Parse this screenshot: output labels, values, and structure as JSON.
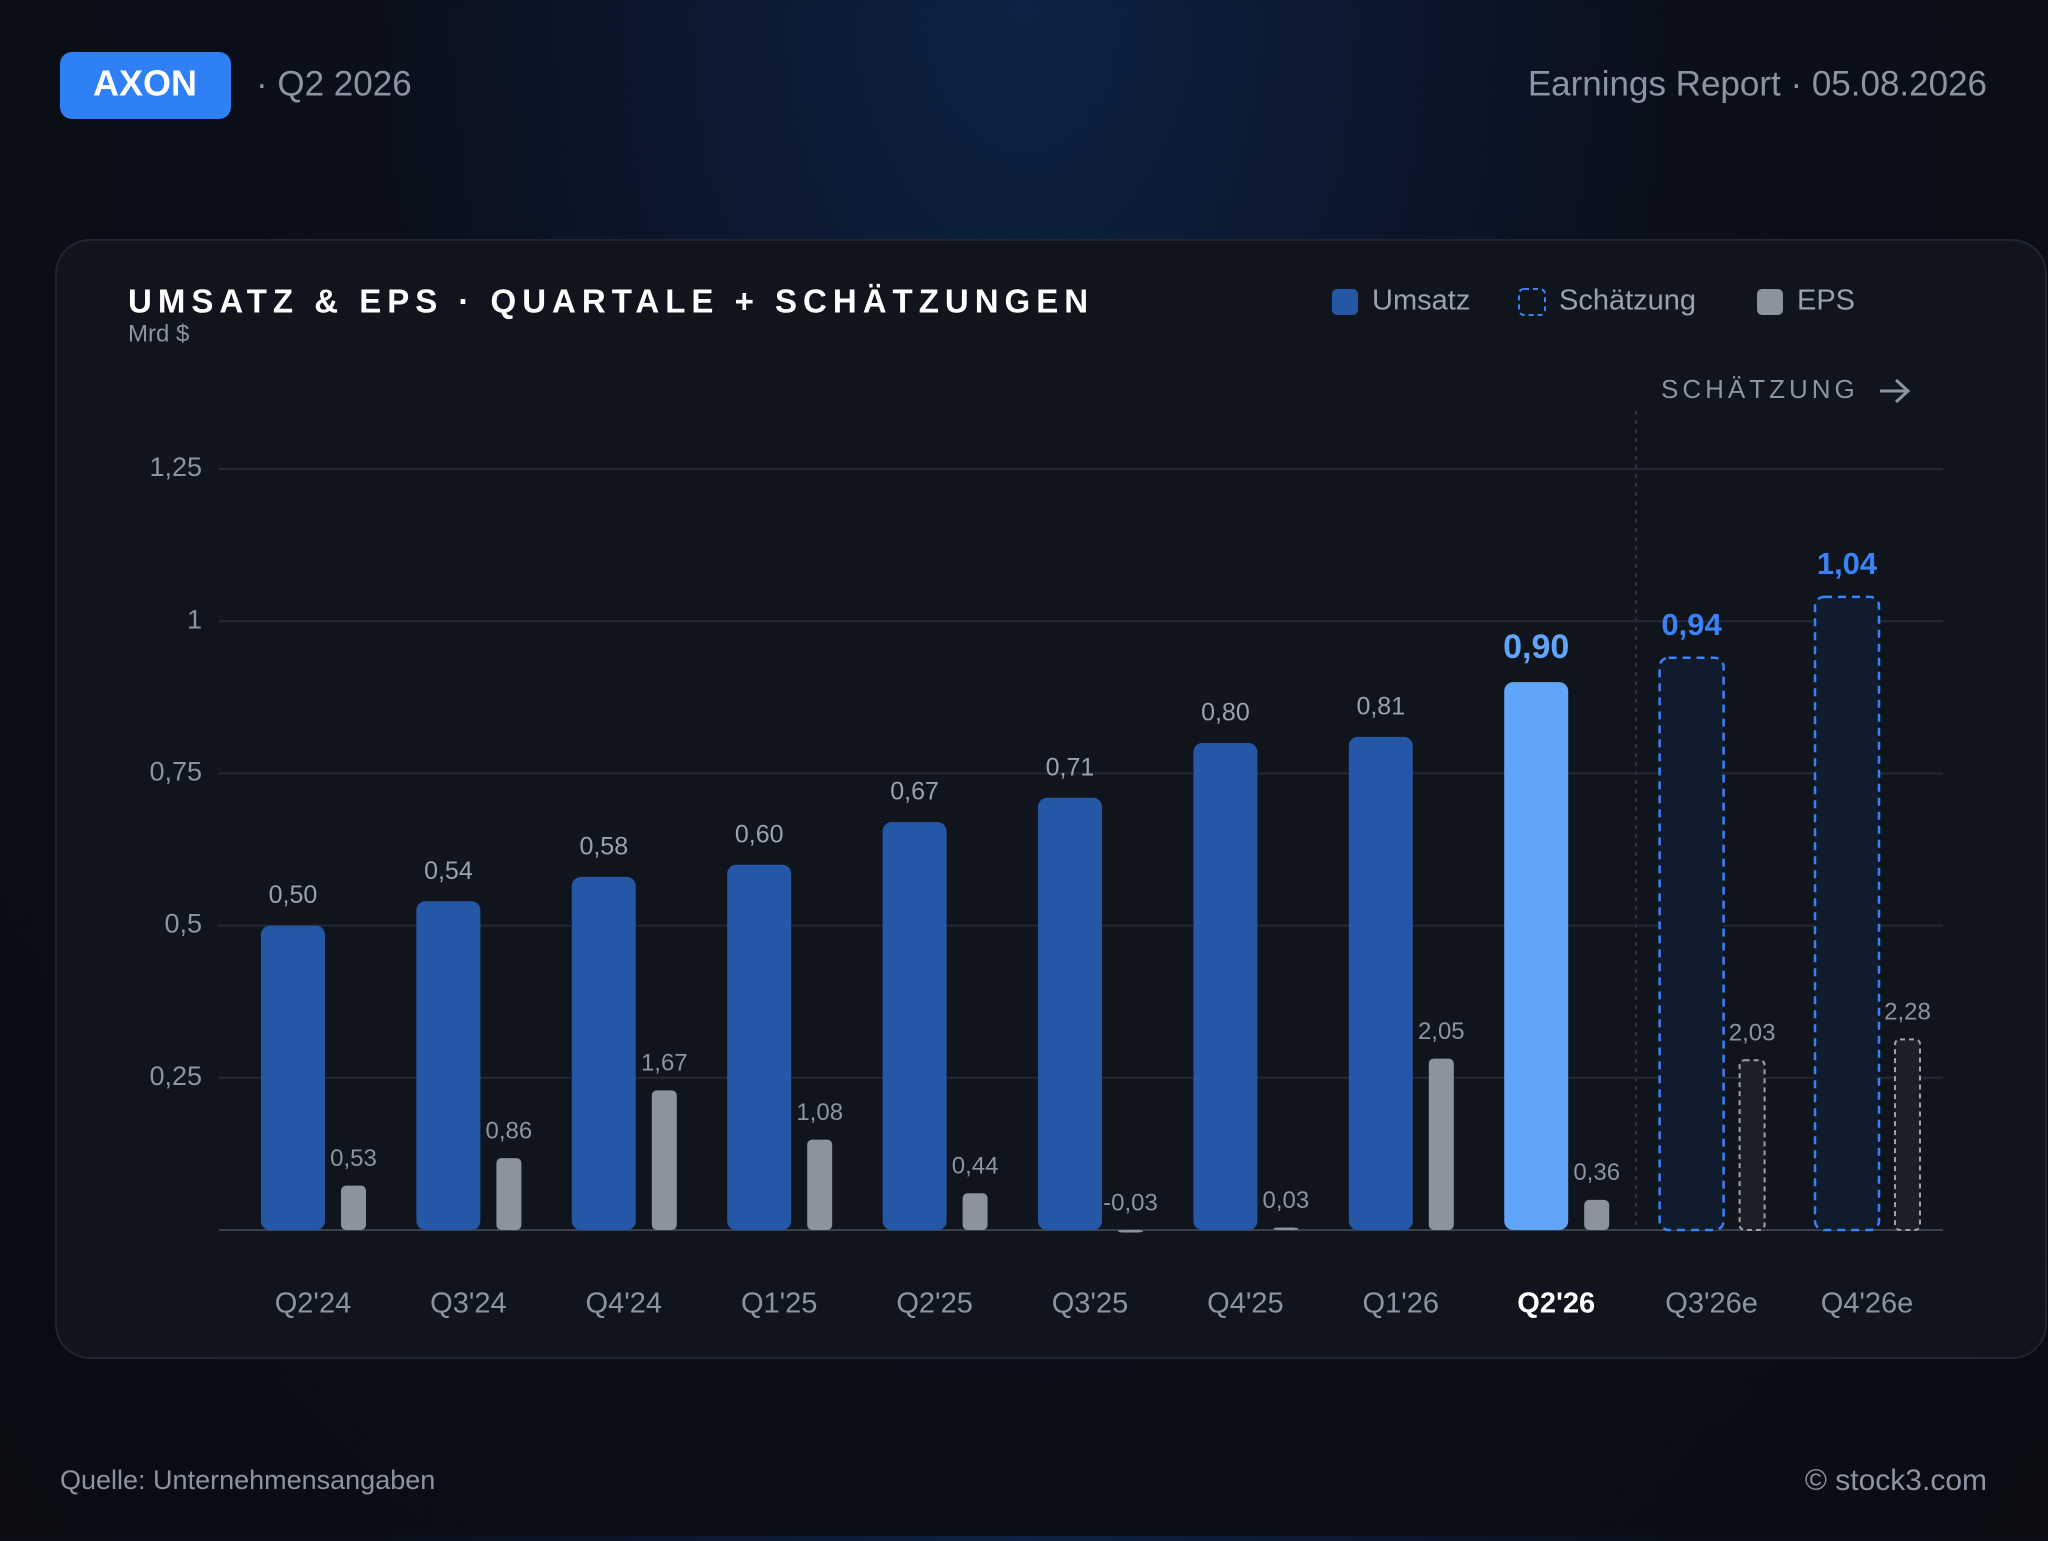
{
  "header": {
    "ticker": "AXON",
    "period": "· Q2 2026",
    "report": "Earnings Report · 05.08.2026"
  },
  "chart_data": {
    "type": "bar",
    "title": "UMSATZ & EPS · QUARTALE + SCHÄTZUNGEN",
    "subtitle": "Mrd $",
    "categories": [
      "Q2'24",
      "Q3'24",
      "Q4'24",
      "Q1'25",
      "Q2'25",
      "Q3'25",
      "Q4'25",
      "Q1'26",
      "Q2'26",
      "Q3'26e",
      "Q4'26e"
    ],
    "highlight": "Q2'26",
    "annotation": "SCHÄTZUNG",
    "series": [
      {
        "name": "Umsatz",
        "color": "#2557a7",
        "highlight_color": "#60a5fa",
        "values": [
          0.5,
          0.54,
          0.58,
          0.6,
          0.67,
          0.71,
          0.8,
          0.81,
          0.9,
          null,
          null
        ],
        "value_labels": [
          "0,50",
          "0,54",
          "0,58",
          "0,60",
          "0,67",
          "0,71",
          "0,80",
          "0,81",
          "0,90",
          null,
          null
        ]
      },
      {
        "name": "Schätzung",
        "color": "#3b82f6",
        "values": [
          null,
          null,
          null,
          null,
          null,
          null,
          null,
          null,
          null,
          0.94,
          1.04
        ],
        "value_labels": [
          null,
          null,
          null,
          null,
          null,
          null,
          null,
          null,
          null,
          "0,94",
          "1,04"
        ]
      },
      {
        "name": "EPS",
        "color": "#8b939e",
        "axis": "y2",
        "values": [
          0.53,
          0.86,
          1.67,
          1.08,
          0.44,
          -0.03,
          0.03,
          2.05,
          0.36,
          2.03,
          2.28
        ],
        "value_labels": [
          "0,53",
          "0,86",
          "1,67",
          "1,08",
          "0,44",
          "-0,03",
          "0,03",
          "2,05",
          "0,36",
          "2,03",
          "2,28"
        ]
      }
    ],
    "ylim": [
      0,
      1.25
    ],
    "yticks": [
      {
        "value": 0.25,
        "label": "0,25"
      },
      {
        "value": 0.5,
        "label": "0,5"
      },
      {
        "value": 0.75,
        "label": "0,75"
      },
      1,
      {
        "value": 1.25,
        "label": "1,25"
      }
    ],
    "y2lim": [
      0,
      9.1
    ],
    "grid": true
  },
  "footer": {
    "source": "Quelle: Unternehmensangaben",
    "copyright": "© stock3.com"
  }
}
